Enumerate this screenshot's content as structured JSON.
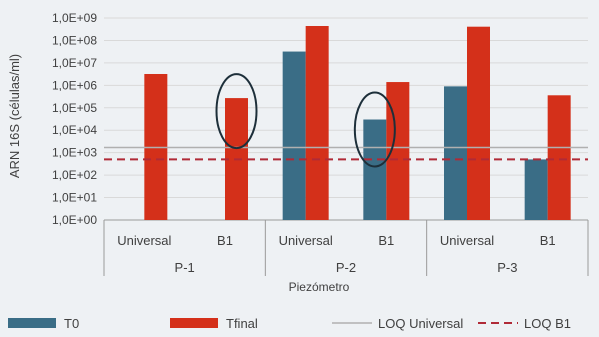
{
  "chart_data": {
    "type": "bar",
    "ylabel": "ARN 16S (células/ml)",
    "xlabel": "Piezómetro",
    "yscale": "log",
    "ylim": [
      1,
      1000000000
    ],
    "ytick_labels": [
      "1,0E+00",
      "1,0E+01",
      "1,0E+02",
      "1,0E+03",
      "1,0E+04",
      "1,0E+05",
      "1,0E+06",
      "1,0E+07",
      "1,0E+08",
      "1,0E+09"
    ],
    "groups": [
      "P-1",
      "P-2",
      "P-3"
    ],
    "categories": [
      {
        "group": "P-1",
        "label": "Universal"
      },
      {
        "group": "P-1",
        "label": "B1"
      },
      {
        "group": "P-2",
        "label": "Universal"
      },
      {
        "group": "P-2",
        "label": "B1"
      },
      {
        "group": "P-3",
        "label": "Universal"
      },
      {
        "group": "P-3",
        "label": "B1"
      }
    ],
    "series": [
      {
        "name": "T0",
        "color": "#3a6d86",
        "values": [
          null,
          null,
          32000000,
          30000,
          900000,
          500
        ]
      },
      {
        "name": "Tfinal",
        "color": "#d4301a",
        "values": [
          3200000,
          270000,
          440000000,
          1400000,
          410000000,
          360000
        ]
      }
    ],
    "lines": [
      {
        "name": "LOQ Universal",
        "value": 1700,
        "color": "#b0b0b0",
        "style": "solid"
      },
      {
        "name": "LOQ B1",
        "value": 500,
        "color": "#b02a37",
        "style": "dashed"
      }
    ],
    "highlights": [
      {
        "category_index": 1,
        "series": "Tfinal"
      },
      {
        "category_index": 3,
        "series": "T0"
      }
    ]
  }
}
